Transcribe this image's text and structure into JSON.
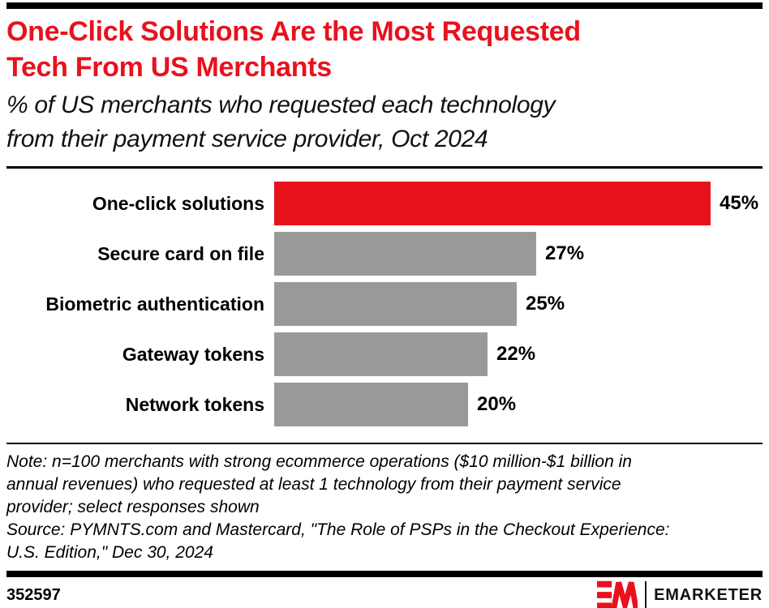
{
  "header": {
    "title_lines": [
      "One-Click Solutions Are the Most Requested",
      "Tech From US Merchants"
    ],
    "subtitle_lines": [
      "% of US merchants who requested each technology",
      "from their payment service provider, Oct 2024"
    ]
  },
  "chart_data": {
    "type": "bar",
    "orientation": "horizontal",
    "title": "One-Click Solutions Are the Most Requested Tech From US Merchants",
    "subtitle": "% of US merchants who requested each technology from their payment service provider, Oct 2024",
    "categories": [
      "One-click solutions",
      "Secure card on file",
      "Biometric authentication",
      "Gateway tokens",
      "Network tokens"
    ],
    "values": [
      45,
      27,
      25,
      22,
      20
    ],
    "value_labels": [
      "45%",
      "27%",
      "25%",
      "22%",
      "20%"
    ],
    "bar_colors": [
      "#E8121D",
      "#999999",
      "#999999",
      "#999999",
      "#999999"
    ],
    "xlim": [
      0,
      47
    ],
    "grid": false,
    "legend": "none",
    "value_label_position": "right-of-bar"
  },
  "footnotes": {
    "note_lines": [
      "Note: n=100 merchants with strong ecommerce operations ($10 million-$1 billion in",
      "annual revenues) who requested at least 1 technology from their payment service",
      "provider; select responses shown"
    ],
    "source_lines": [
      "Source: PYMNTS.com and Mastercard, \"The Role of PSPs in the Checkout Experience:",
      "U.S. Edition,\" Dec 30, 2024"
    ]
  },
  "footer": {
    "chart_id": "352597",
    "brand": "EMARKETER"
  },
  "colors": {
    "accent_red": "#E8121D",
    "bar_gray": "#999999",
    "text_black": "#000000",
    "rule_black": "#000000",
    "background": "#FFFFFF"
  }
}
